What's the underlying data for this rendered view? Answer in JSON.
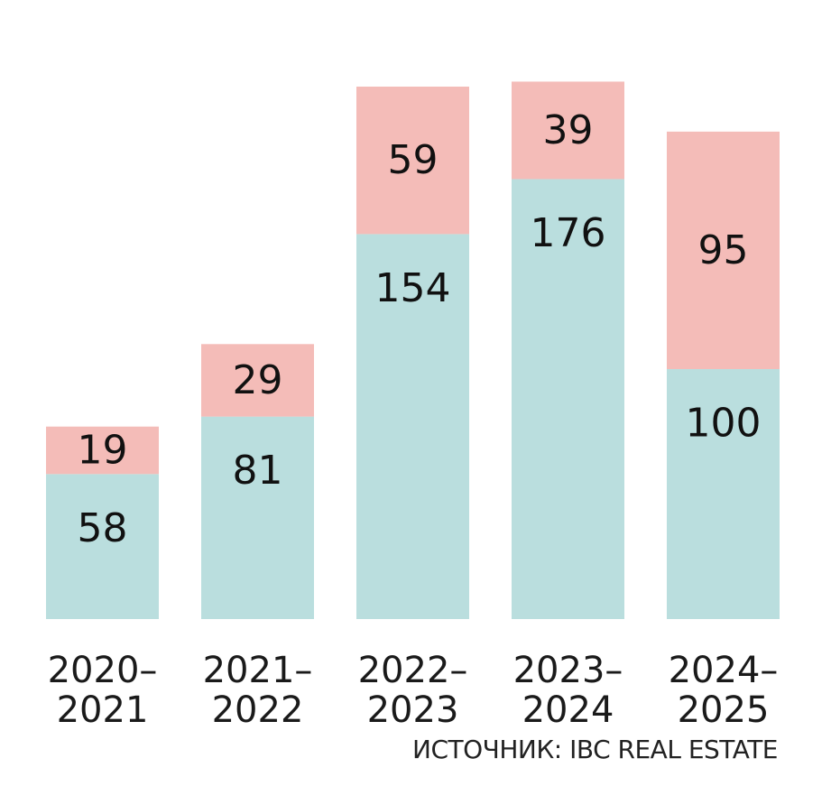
{
  "chart_data": {
    "type": "bar",
    "stacked": true,
    "categories": [
      "2020–2021",
      "2021–2022",
      "2022–2023",
      "2023–2024",
      "2024–2025"
    ],
    "category_lines": [
      [
        "2020–",
        "2021"
      ],
      [
        "2021–",
        "2022"
      ],
      [
        "2022–",
        "2023"
      ],
      [
        "2023–",
        "2024"
      ],
      [
        "2024–",
        "2025"
      ]
    ],
    "series": [
      {
        "color": "#badede",
        "values": [
          58,
          81,
          154,
          176,
          100
        ]
      },
      {
        "color": "#f4bcb8",
        "values": [
          19,
          29,
          59,
          39,
          95
        ]
      }
    ],
    "ylim": [
      0,
      215
    ],
    "grid": false,
    "legend": "none",
    "xlabel": "",
    "ylabel": ""
  },
  "source": "ИСТОЧНИК: IBC REAL ESTATE"
}
